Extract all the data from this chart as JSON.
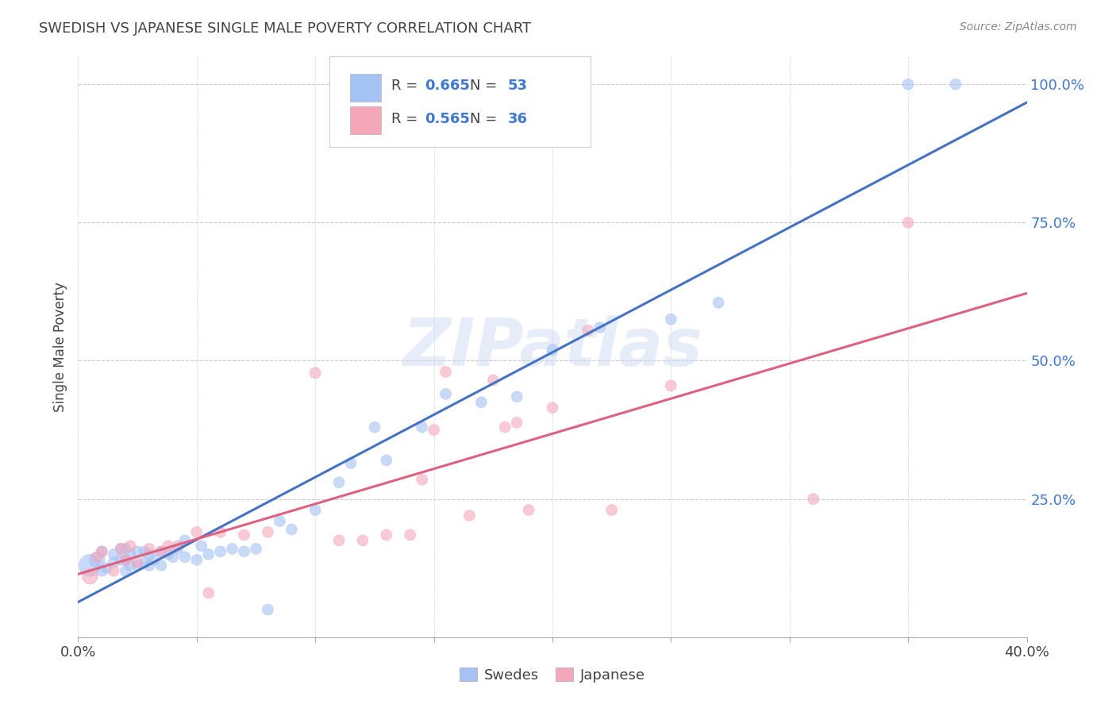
{
  "title": "SWEDISH VS JAPANESE SINGLE MALE POVERTY CORRELATION CHART",
  "source": "Source: ZipAtlas.com",
  "ylabel": "Single Male Poverty",
  "xlim": [
    0.0,
    0.4
  ],
  "ylim": [
    0.0,
    1.05
  ],
  "ytick_labels": [
    "100.0%",
    "75.0%",
    "50.0%",
    "25.0%"
  ],
  "ytick_vals": [
    1.0,
    0.75,
    0.5,
    0.25
  ],
  "xtick_vals": [
    0.0,
    0.05,
    0.1,
    0.15,
    0.2,
    0.25,
    0.3,
    0.35,
    0.4
  ],
  "color_swedish": "#a4c2f4",
  "color_japanese": "#f4a7b9",
  "color_line_swedish": "#4472c4",
  "color_line_japanese": "#e06080",
  "color_blue_label": "#3c78d8",
  "color_title": "#434343",
  "R_swedish": 0.665,
  "N_swedish": 53,
  "R_japanese": 0.565,
  "N_japanese": 36,
  "watermark": "ZIPatlas",
  "swedish_x": [
    0.005,
    0.008,
    0.01,
    0.01,
    0.012,
    0.015,
    0.015,
    0.018,
    0.018,
    0.02,
    0.02,
    0.02,
    0.022,
    0.022,
    0.025,
    0.025,
    0.028,
    0.028,
    0.03,
    0.03,
    0.032,
    0.035,
    0.035,
    0.038,
    0.04,
    0.042,
    0.045,
    0.045,
    0.05,
    0.052,
    0.055,
    0.06,
    0.065,
    0.07,
    0.075,
    0.08,
    0.085,
    0.09,
    0.1,
    0.11,
    0.115,
    0.125,
    0.13,
    0.145,
    0.155,
    0.17,
    0.185,
    0.2,
    0.22,
    0.25,
    0.27,
    0.35,
    0.37
  ],
  "swedish_y": [
    0.13,
    0.14,
    0.12,
    0.155,
    0.125,
    0.135,
    0.15,
    0.14,
    0.16,
    0.12,
    0.14,
    0.16,
    0.13,
    0.15,
    0.13,
    0.155,
    0.135,
    0.155,
    0.13,
    0.15,
    0.14,
    0.13,
    0.155,
    0.15,
    0.145,
    0.16,
    0.145,
    0.175,
    0.14,
    0.165,
    0.15,
    0.155,
    0.16,
    0.155,
    0.16,
    0.05,
    0.21,
    0.195,
    0.23,
    0.28,
    0.315,
    0.38,
    0.32,
    0.38,
    0.44,
    0.425,
    0.435,
    0.52,
    0.56,
    0.575,
    0.605,
    1.0,
    1.0
  ],
  "swedish_sizes": [
    400,
    200,
    100,
    100,
    100,
    100,
    100,
    100,
    100,
    100,
    100,
    100,
    100,
    100,
    100,
    100,
    100,
    100,
    100,
    100,
    100,
    100,
    100,
    100,
    100,
    100,
    100,
    100,
    100,
    100,
    100,
    100,
    100,
    100,
    100,
    100,
    100,
    100,
    100,
    100,
    100,
    100,
    100,
    100,
    100,
    100,
    100,
    100,
    100,
    100,
    100,
    100,
    100
  ],
  "japanese_x": [
    0.005,
    0.008,
    0.01,
    0.015,
    0.018,
    0.02,
    0.022,
    0.025,
    0.03,
    0.035,
    0.038,
    0.042,
    0.05,
    0.055,
    0.06,
    0.07,
    0.08,
    0.1,
    0.11,
    0.12,
    0.13,
    0.14,
    0.145,
    0.15,
    0.155,
    0.165,
    0.175,
    0.18,
    0.185,
    0.19,
    0.2,
    0.215,
    0.225,
    0.25,
    0.31,
    0.35
  ],
  "japanese_y": [
    0.11,
    0.145,
    0.155,
    0.12,
    0.16,
    0.14,
    0.165,
    0.135,
    0.16,
    0.155,
    0.165,
    0.165,
    0.19,
    0.08,
    0.19,
    0.185,
    0.19,
    0.478,
    0.175,
    0.175,
    0.185,
    0.185,
    0.285,
    0.375,
    0.48,
    0.22,
    0.465,
    0.38,
    0.388,
    0.23,
    0.415,
    0.555,
    0.23,
    0.455,
    0.25,
    0.75
  ],
  "japanese_sizes": [
    200,
    100,
    100,
    100,
    100,
    100,
    100,
    100,
    100,
    100,
    100,
    100,
    100,
    100,
    100,
    100,
    100,
    100,
    100,
    100,
    100,
    100,
    100,
    100,
    100,
    100,
    100,
    100,
    100,
    100,
    100,
    100,
    100,
    100,
    100,
    100
  ]
}
